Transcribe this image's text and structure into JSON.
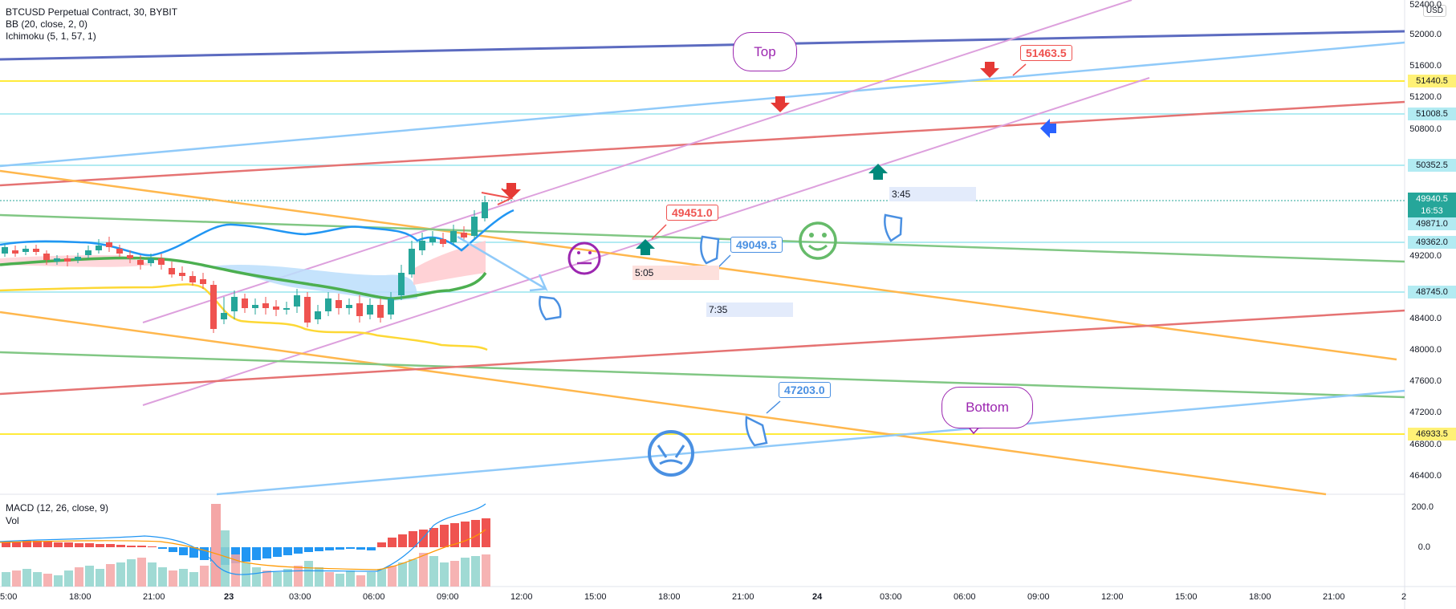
{
  "legend": {
    "symbol": "BTCUSD Perpetual Contract, 30, BYBIT",
    "bb": "BB (20, close, 2, 0)",
    "ichimoku": "Ichimoku (5, 1, 57, 1)",
    "macd": "MACD (12, 26, close, 9)",
    "vol": "Vol"
  },
  "currency": "USD",
  "price_axis": [
    "52400.0",
    "52000.0",
    "51600.0",
    "51200.0",
    "50800.0",
    "49200.0",
    "48400.0",
    "48000.0",
    "47600.0",
    "47200.0",
    "46800.0",
    "46400.0"
  ],
  "macd_axis": [
    "200.0",
    "0.0"
  ],
  "price_tags": [
    {
      "label": "51440.5",
      "bg": "#fff176"
    },
    {
      "label": "51008.5",
      "bg": "#b2ebf2"
    },
    {
      "label": "50352.5",
      "bg": "#b2ebf2"
    },
    {
      "label": "49940.5",
      "bg": "#26a69a"
    },
    {
      "label": "16:53",
      "bg": "#26a69a"
    },
    {
      "label": "49871.0",
      "bg": "#b2ebf2"
    },
    {
      "label": "49362.0",
      "bg": "#b2ebf2"
    },
    {
      "label": "48745.0",
      "bg": "#b2ebf2"
    },
    {
      "label": "46933.5",
      "bg": "#fff176"
    }
  ],
  "time_axis": [
    "5:00",
    "18:00",
    "21:00",
    "23",
    "03:00",
    "06:00",
    "09:00",
    "12:00",
    "15:00",
    "18:00",
    "21:00",
    "24",
    "03:00",
    "06:00",
    "09:00",
    "12:00",
    "15:00",
    "18:00",
    "21:00",
    "2"
  ],
  "callouts": [
    {
      "label": "51463.5",
      "color": "#ef5350"
    },
    {
      "label": "49451.0",
      "color": "#ef5350"
    },
    {
      "label": "49049.5",
      "color": "#4a90e2"
    },
    {
      "label": "47203.0",
      "color": "#4a90e2"
    }
  ],
  "bubbles": {
    "top": "Top",
    "bottom": "Bottom"
  },
  "time_boxes": [
    "3:45",
    "5:05",
    "7:35"
  ],
  "colors": {
    "up": "#26a69a",
    "down": "#ef5350",
    "bb": "#2196f3",
    "cloud": "#bbdefb"
  }
}
